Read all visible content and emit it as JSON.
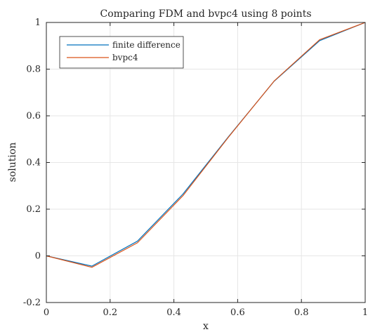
{
  "chart_data": {
    "type": "line",
    "title": "Comparing FDM and bvpc4 using 8 points",
    "xlabel": "x",
    "ylabel": "solution",
    "xlim": [
      0,
      1
    ],
    "ylim": [
      -0.2,
      1
    ],
    "xticks": [
      0,
      0.2,
      0.4,
      0.6,
      0.8,
      1
    ],
    "xtick_labels": [
      "0",
      "0.2",
      "0.4",
      "0.6",
      "0.8",
      "1"
    ],
    "yticks": [
      -0.2,
      0,
      0.2,
      0.4,
      0.6,
      0.8,
      1
    ],
    "ytick_labels": [
      "-0.2",
      "0",
      "0.2",
      "0.4",
      "0.6",
      "0.8",
      "1"
    ],
    "grid": true,
    "legend_position": "top-left",
    "series": [
      {
        "name": "finite difference",
        "color": "#0072BD",
        "x": [
          0,
          0.142857,
          0.285714,
          0.428571,
          0.571429,
          0.714286,
          0.857143,
          1
        ],
        "y": [
          0,
          -0.044,
          0.063,
          0.265,
          0.511,
          0.748,
          0.922,
          1
        ]
      },
      {
        "name": "bvpc4",
        "color": "#D95319",
        "x": [
          0,
          0.142857,
          0.285714,
          0.428571,
          0.571429,
          0.714286,
          0.857143,
          1
        ],
        "y": [
          0,
          -0.049,
          0.056,
          0.258,
          0.509,
          0.749,
          0.926,
          1
        ]
      }
    ]
  }
}
